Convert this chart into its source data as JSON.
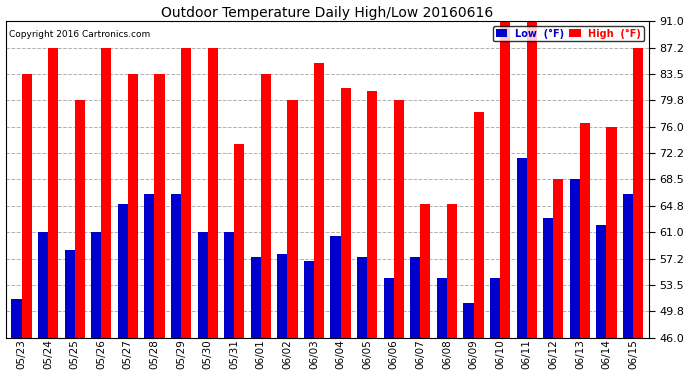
{
  "title": "Outdoor Temperature Daily High/Low 20160616",
  "copyright": "Copyright 2016 Cartronics.com",
  "ylim": [
    46.0,
    91.0
  ],
  "yticks": [
    46.0,
    49.8,
    53.5,
    57.2,
    61.0,
    64.8,
    68.5,
    72.2,
    76.0,
    79.8,
    83.5,
    87.2,
    91.0
  ],
  "background_color": "#ffffff",
  "grid_color": "#b0b0b0",
  "bar_color_low": "#0000cc",
  "bar_color_high": "#ff0000",
  "legend_low_label": "Low  (°F)",
  "legend_high_label": "High  (°F)",
  "dates": [
    "05/23",
    "05/24",
    "05/25",
    "05/26",
    "05/27",
    "05/28",
    "05/29",
    "05/30",
    "05/31",
    "06/01",
    "06/02",
    "06/03",
    "06/04",
    "06/05",
    "06/06",
    "06/07",
    "06/08",
    "06/09",
    "06/10",
    "06/11",
    "06/12",
    "06/13",
    "06/14",
    "06/15"
  ],
  "high": [
    83.5,
    87.2,
    79.8,
    87.2,
    83.5,
    83.5,
    87.2,
    87.2,
    73.5,
    83.5,
    79.8,
    85.0,
    81.5,
    81.0,
    79.8,
    65.0,
    65.0,
    78.0,
    91.0,
    91.0,
    68.5,
    76.5,
    76.0,
    87.2
  ],
  "low": [
    51.5,
    61.0,
    58.5,
    61.0,
    65.0,
    66.5,
    66.5,
    61.0,
    61.0,
    57.5,
    58.0,
    57.0,
    60.5,
    57.5,
    54.5,
    57.5,
    54.5,
    51.0,
    54.5,
    71.5,
    63.0,
    68.5,
    62.0,
    66.5
  ]
}
